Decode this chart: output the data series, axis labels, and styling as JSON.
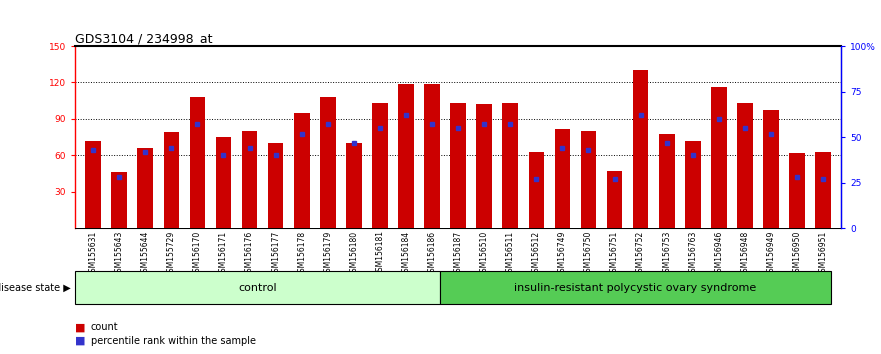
{
  "title": "GDS3104 / 234998_at",
  "samples": [
    "GSM155631",
    "GSM155643",
    "GSM155644",
    "GSM155729",
    "GSM156170",
    "GSM156171",
    "GSM156176",
    "GSM156177",
    "GSM156178",
    "GSM156179",
    "GSM156180",
    "GSM156181",
    "GSM156184",
    "GSM156186",
    "GSM156187",
    "GSM156510",
    "GSM156511",
    "GSM156512",
    "GSM156749",
    "GSM156750",
    "GSM156751",
    "GSM156752",
    "GSM156753",
    "GSM156763",
    "GSM156946",
    "GSM156948",
    "GSM156949",
    "GSM156950",
    "GSM156951"
  ],
  "counts": [
    72,
    46,
    66,
    79,
    108,
    75,
    80,
    70,
    95,
    108,
    70,
    103,
    119,
    119,
    103,
    102,
    103,
    63,
    82,
    80,
    47,
    130,
    78,
    72,
    116,
    103,
    97,
    62,
    63
  ],
  "percentiles": [
    43,
    28,
    42,
    44,
    57,
    40,
    44,
    40,
    52,
    57,
    47,
    55,
    62,
    57,
    55,
    57,
    57,
    27,
    44,
    43,
    27,
    62,
    47,
    40,
    60,
    55,
    52,
    28,
    27
  ],
  "group_control_count": 14,
  "group1_label": "control",
  "group2_label": "insulin-resistant polycystic ovary syndrome",
  "disease_state_label": "disease state",
  "ylim": [
    0,
    150
  ],
  "yticks_left": [
    30,
    60,
    90,
    120,
    150
  ],
  "yticks_right_values": [
    0,
    25,
    50,
    75,
    100
  ],
  "yticks_right_labels": [
    "0",
    "25",
    "50",
    "75",
    "100%"
  ],
  "bar_color": "#cc0000",
  "square_color": "#3333cc",
  "control_bg": "#ccffcc",
  "disease_bg": "#55cc55",
  "xlabel_bg": "#d0d0d0",
  "title_fontsize": 9,
  "tick_fontsize": 6.5,
  "xlabel_fontsize": 5.5,
  "ann_fontsize": 8
}
